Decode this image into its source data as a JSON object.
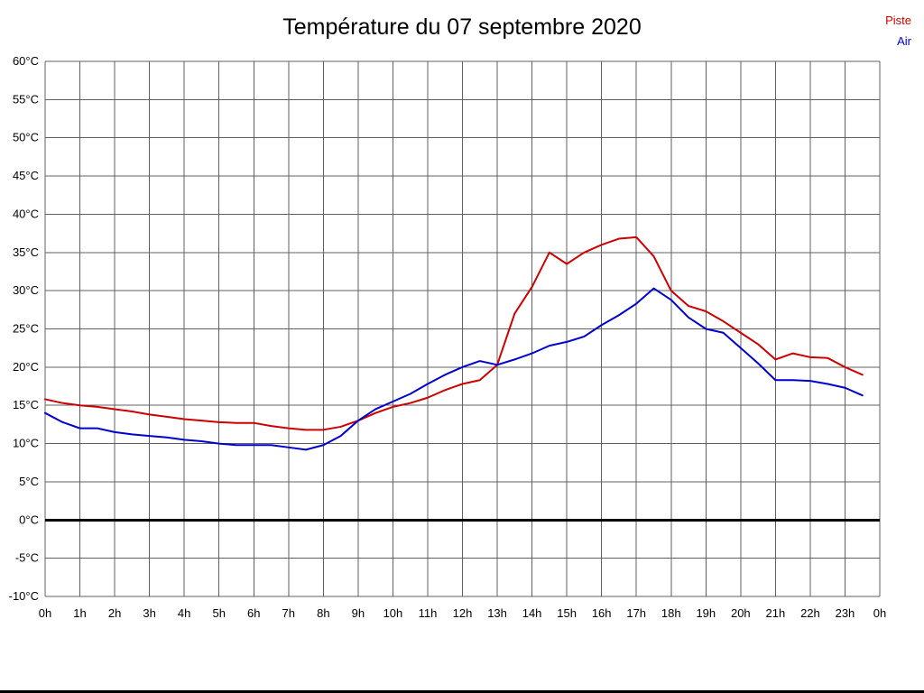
{
  "chart_data": {
    "type": "line",
    "title": "Température du 07 septembre 2020",
    "xlim": [
      0,
      24
    ],
    "ylim": [
      -10,
      60
    ],
    "grid": true,
    "zero_line": true,
    "legend": [
      {
        "label": "Piste",
        "color": "#cc0000"
      },
      {
        "label": "Air",
        "color": "#0000cc"
      }
    ],
    "y_ticks": [
      "60°C",
      "55°C",
      "50°C",
      "45°C",
      "40°C",
      "35°C",
      "30°C",
      "25°C",
      "20°C",
      "15°C",
      "10°C",
      "5°C",
      "0°C",
      "-5°C",
      "-10°C"
    ],
    "x_ticks": [
      "0h",
      "1h",
      "2h",
      "3h",
      "4h",
      "5h",
      "6h",
      "7h",
      "8h",
      "9h",
      "10h",
      "11h",
      "12h",
      "13h",
      "14h",
      "15h",
      "16h",
      "17h",
      "18h",
      "19h",
      "20h",
      "21h",
      "22h",
      "23h",
      "0h"
    ],
    "x": [
      0,
      0.5,
      1,
      1.5,
      2,
      2.5,
      3,
      3.5,
      4,
      4.5,
      5,
      5.5,
      6,
      6.5,
      7,
      7.5,
      8,
      8.5,
      9,
      9.5,
      10,
      10.5,
      11,
      11.5,
      12,
      12.5,
      13,
      13.5,
      14,
      14.5,
      15,
      15.5,
      16,
      16.5,
      17,
      17.5,
      18,
      18.5,
      19,
      19.5,
      20,
      20.5,
      21,
      21.5,
      22,
      22.5,
      23,
      23.5
    ],
    "series": [
      {
        "name": "Piste",
        "color": "#cc0000",
        "values": [
          15.8,
          15.3,
          15.0,
          14.8,
          14.5,
          14.2,
          13.8,
          13.5,
          13.2,
          13.0,
          12.8,
          12.7,
          12.7,
          12.3,
          12.0,
          11.8,
          11.8,
          12.2,
          13.0,
          14.0,
          14.8,
          15.3,
          16.0,
          17.0,
          17.8,
          18.3,
          20.3,
          27.0,
          30.5,
          35.0,
          33.5,
          35.0,
          36.0,
          36.8,
          37.0,
          34.5,
          30.0,
          28.0,
          27.3,
          26.0,
          24.5,
          23.0,
          21.0,
          21.8,
          21.3,
          21.2,
          20.0,
          19.0
        ]
      },
      {
        "name": "Air",
        "color": "#0000cc",
        "values": [
          14.0,
          12.8,
          12.0,
          12.0,
          11.5,
          11.2,
          11.0,
          10.8,
          10.5,
          10.3,
          10.0,
          9.8,
          9.8,
          9.8,
          9.5,
          9.2,
          9.8,
          11.0,
          13.0,
          14.5,
          15.5,
          16.5,
          17.8,
          19.0,
          20.0,
          20.8,
          20.3,
          21.0,
          21.8,
          22.8,
          23.3,
          24.0,
          25.5,
          26.8,
          28.3,
          30.3,
          28.8,
          26.5,
          25.0,
          24.5,
          22.5,
          20.5,
          18.3,
          18.3,
          18.2,
          17.8,
          17.3,
          16.3
        ]
      }
    ],
    "colors": {
      "grid": "#606060",
      "zero_line": "#000000",
      "tick_text": "#000000"
    }
  }
}
